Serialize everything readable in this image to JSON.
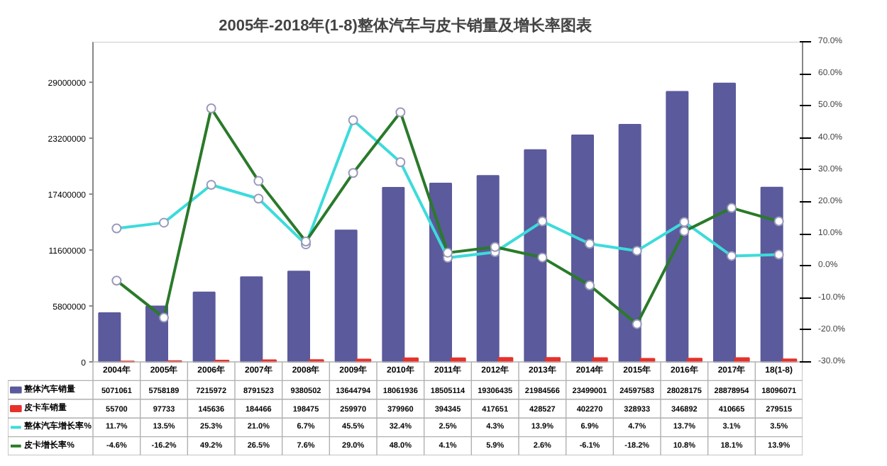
{
  "chart_data": {
    "type": "bar",
    "title": "2005年-2018年(1-8)整体汽车与皮卡销量及增长率图表",
    "categories": [
      "2004年",
      "2005年",
      "2006年",
      "2007年",
      "2008年",
      "2009年",
      "2010年",
      "2011年",
      "2012年",
      "2013年",
      "2014年",
      "2015年",
      "2016年",
      "2017年",
      "18(1-8)"
    ],
    "series": [
      {
        "name": "整体汽车销量",
        "color": "#5b5a9c",
        "values": [
          5071061,
          5758189,
          7215972,
          8791523,
          9380502,
          13644794,
          18061936,
          18505114,
          19306435,
          21984566,
          23499001,
          24597583,
          28028175,
          28878954,
          18096071
        ],
        "value_labels": [
          "5071061",
          "5758189",
          "7215972",
          "8791523",
          "9380502",
          "13644794",
          "18061936",
          "18505114",
          "19306435",
          "21984566",
          "23499001",
          "24597583",
          "28028175",
          "28878954",
          "18096071"
        ]
      },
      {
        "name": "皮卡车销量",
        "color": "#e8302a",
        "values": [
          55700,
          97733,
          145636,
          184466,
          198475,
          259970,
          379960,
          394345,
          417651,
          428527,
          402270,
          328933,
          346892,
          410665,
          279515
        ],
        "value_labels": [
          "55700",
          "97733",
          "145636",
          "184466",
          "198475",
          "259970",
          "379960",
          "394345",
          "417651",
          "428527",
          "402270",
          "328933",
          "346892",
          "410665",
          "279515"
        ]
      },
      {
        "name": "整体汽车增长率%",
        "type": "line",
        "axis": "y2",
        "color": "#3ddbdb",
        "marker": "circle",
        "values": [
          11.7,
          13.5,
          25.3,
          21.0,
          6.7,
          45.5,
          32.4,
          2.5,
          4.3,
          13.9,
          6.9,
          4.7,
          13.7,
          3.1,
          3.5
        ],
        "value_labels": [
          "11.7%",
          "13.5%",
          "25.3%",
          "21.0%",
          "6.7%",
          "45.5%",
          "32.4%",
          "2.5%",
          "4.3%",
          "13.9%",
          "6.9%",
          "4.7%",
          "13.7%",
          "3.1%",
          "3.5%"
        ]
      },
      {
        "name": "皮卡增长率%",
        "type": "line",
        "axis": "y2",
        "color": "#2a7a2a",
        "marker": "circle",
        "values": [
          -4.6,
          -16.2,
          49.2,
          26.5,
          7.6,
          29.0,
          48.0,
          4.1,
          5.9,
          2.6,
          -6.1,
          -18.2,
          10.8,
          18.1,
          13.9
        ],
        "value_labels": [
          "-4.6%",
          "-16.2%",
          "49.2%",
          "26.5%",
          "7.6%",
          "29.0%",
          "48.0%",
          "4.1%",
          "5.9%",
          "2.6%",
          "-6.1%",
          "-18.2%",
          "10.8%",
          "18.1%",
          "13.9%"
        ]
      }
    ],
    "ylim": [
      0,
      33200000
    ],
    "yticks": [
      0,
      5800000,
      11600000,
      17400000,
      23200000,
      29000000
    ],
    "y2lim": [
      -30,
      70
    ],
    "y2ticks": [
      {
        "value": -30,
        "label": "-30.0%"
      },
      {
        "value": -20,
        "label": "-20.0%"
      },
      {
        "value": -10,
        "label": "-10.0%"
      },
      {
        "value": 0,
        "label": "0.0%"
      },
      {
        "value": 10,
        "label": "10.0%"
      },
      {
        "value": 20,
        "label": "20.0%"
      },
      {
        "value": 30,
        "label": "30.0%"
      },
      {
        "value": 40,
        "label": "40.0%"
      },
      {
        "value": 50,
        "label": "50.0%"
      },
      {
        "value": 60,
        "label": "60.0%"
      },
      {
        "value": 70,
        "label": "70.0%"
      }
    ],
    "legend": "bottom",
    "grid": false
  }
}
